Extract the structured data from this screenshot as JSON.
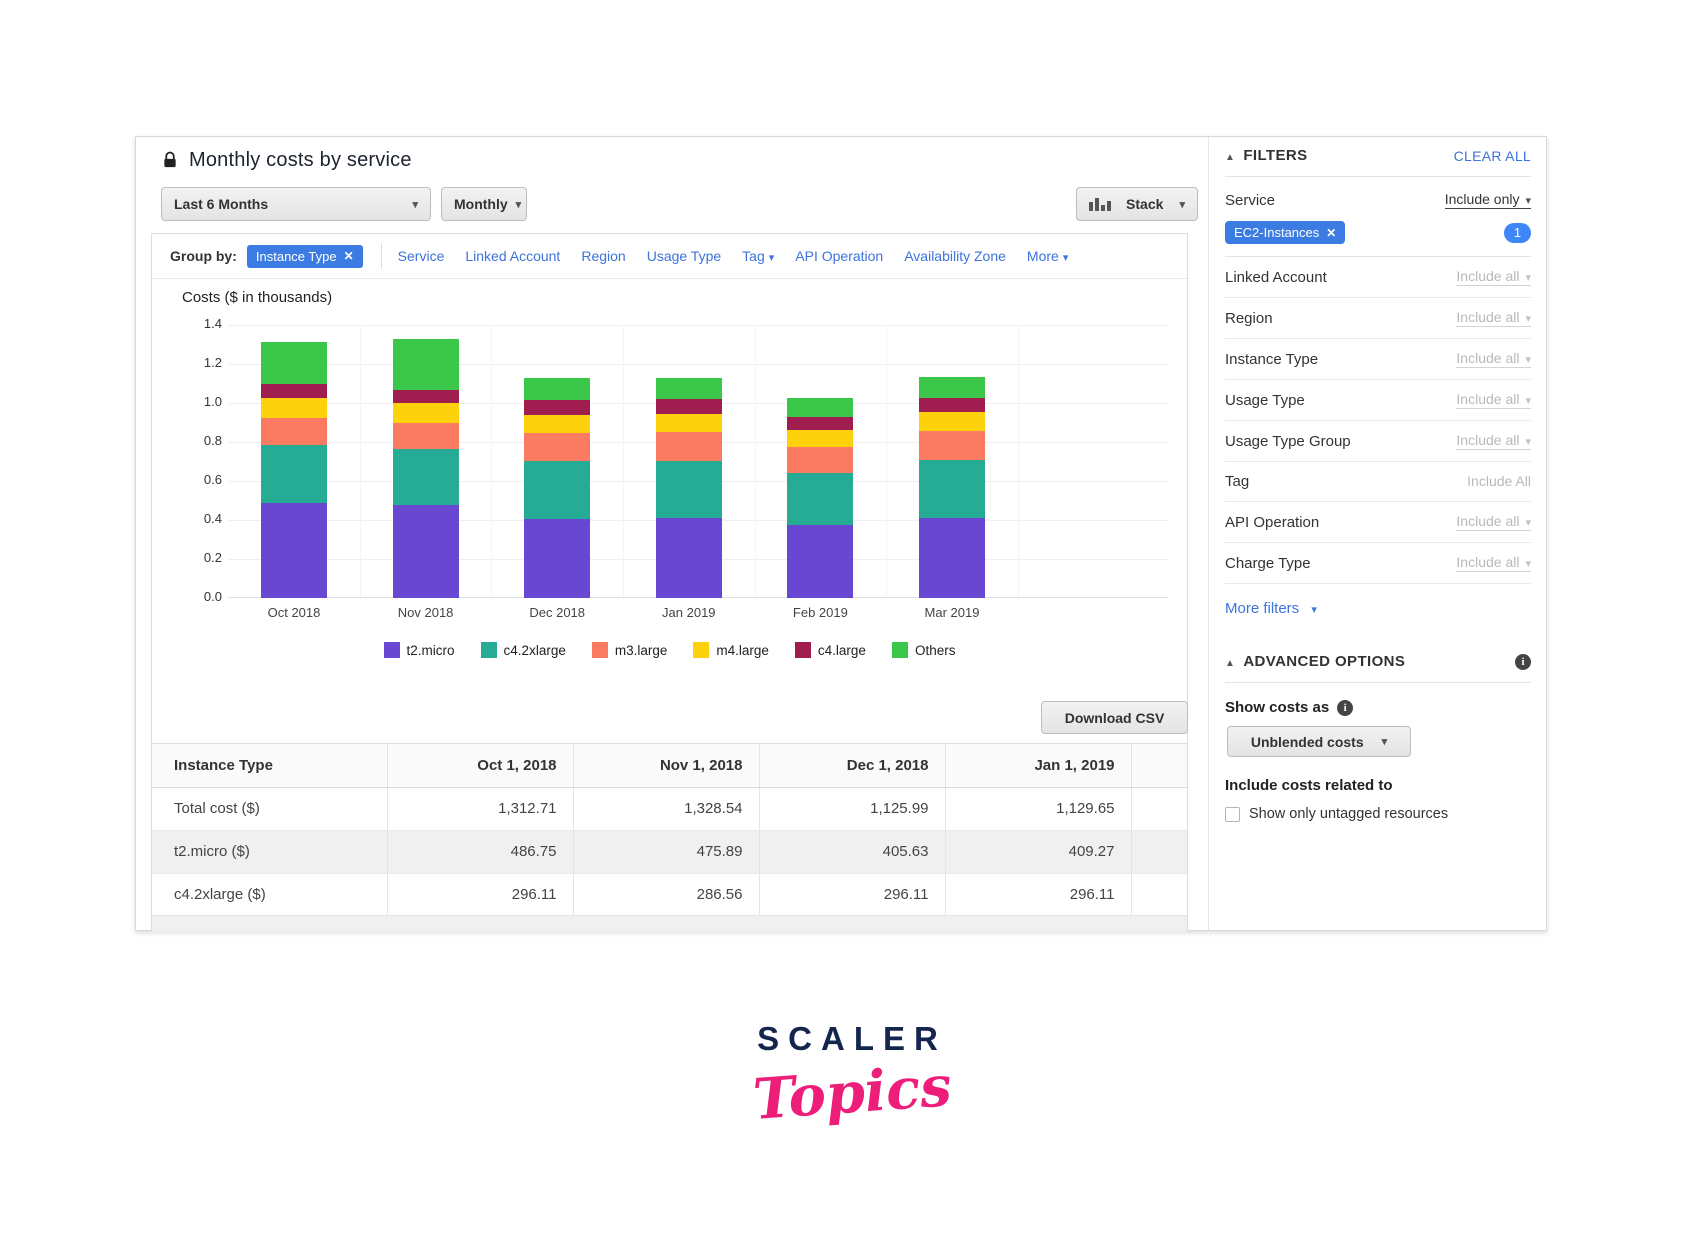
{
  "header": {
    "title": "Monthly costs by service"
  },
  "controls": {
    "date_range": "Last 6 Months",
    "granularity": "Monthly",
    "chart_style": "Stack"
  },
  "group_by": {
    "label": "Group by:",
    "chip": "Instance Type",
    "options": [
      {
        "label": "Service",
        "caret": false
      },
      {
        "label": "Linked Account",
        "caret": false
      },
      {
        "label": "Region",
        "caret": false
      },
      {
        "label": "Usage Type",
        "caret": false
      },
      {
        "label": "Tag",
        "caret": true
      },
      {
        "label": "API Operation",
        "caret": false
      },
      {
        "label": "Availability Zone",
        "caret": false
      },
      {
        "label": "More",
        "caret": true
      }
    ]
  },
  "chart_data": {
    "type": "bar",
    "stacked": true,
    "title": "Costs ($ in thousands)",
    "categories": [
      "Oct 2018",
      "Nov 2018",
      "Dec 2018",
      "Jan 2019",
      "Feb 2019",
      "Mar 2019"
    ],
    "series": [
      {
        "name": "t2.micro",
        "color": "#6847d1",
        "values": [
          0.487,
          0.476,
          0.406,
          0.409,
          0.375,
          0.41
        ]
      },
      {
        "name": "c4.2xlarge",
        "color": "#26ac95",
        "values": [
          0.296,
          0.287,
          0.296,
          0.296,
          0.265,
          0.3
        ]
      },
      {
        "name": "m3.large",
        "color": "#fa7b62",
        "values": [
          0.142,
          0.137,
          0.143,
          0.145,
          0.135,
          0.145
        ]
      },
      {
        "name": "m4.large",
        "color": "#fdd10c",
        "values": [
          0.1,
          0.1,
          0.095,
          0.095,
          0.087,
          0.1
        ]
      },
      {
        "name": "c4.large",
        "color": "#a01d50",
        "values": [
          0.073,
          0.065,
          0.075,
          0.075,
          0.068,
          0.07
        ]
      },
      {
        "name": "Others",
        "color": "#3bc84a",
        "values": [
          0.215,
          0.264,
          0.111,
          0.11,
          0.095,
          0.11
        ]
      }
    ],
    "ylim": [
      0,
      1.4
    ],
    "yticks": [
      0.0,
      0.2,
      0.4,
      0.6,
      0.8,
      1.0,
      1.2,
      1.4
    ],
    "grid": true,
    "legend_position": "bottom"
  },
  "actions": {
    "download_csv": "Download CSV"
  },
  "table": {
    "columns": [
      "Instance Type",
      "Oct 1, 2018",
      "Nov 1, 2018",
      "Dec 1, 2018",
      "Jan 1, 2019"
    ],
    "rows": [
      [
        "Total cost ($)",
        "1,312.71",
        "1,328.54",
        "1,125.99",
        "1,129.65"
      ],
      [
        "t2.micro ($)",
        "486.75",
        "475.89",
        "405.63",
        "409.27"
      ],
      [
        "c4.2xlarge ($)",
        "296.11",
        "286.56",
        "296.11",
        "296.11"
      ]
    ]
  },
  "filters": {
    "heading": "FILTERS",
    "clear_all": "CLEAR ALL",
    "service": {
      "label": "Service",
      "value": "Include only",
      "chip": "EC2-Instances",
      "count": "1"
    },
    "rows": [
      {
        "label": "Linked Account",
        "value": "Include all",
        "caret": true,
        "underline": true
      },
      {
        "label": "Region",
        "value": "Include all",
        "caret": true,
        "underline": true
      },
      {
        "label": "Instance Type",
        "value": "Include all",
        "caret": true,
        "underline": true
      },
      {
        "label": "Usage Type",
        "value": "Include all",
        "caret": true,
        "underline": true
      },
      {
        "label": "Usage Type Group",
        "value": "Include all",
        "caret": true,
        "underline": true
      },
      {
        "label": "Tag",
        "value": "Include All",
        "caret": false,
        "underline": false
      },
      {
        "label": "API Operation",
        "value": "Include all",
        "caret": true,
        "underline": true
      },
      {
        "label": "Charge Type",
        "value": "Include all",
        "caret": true,
        "underline": true
      }
    ],
    "more_filters": "More filters"
  },
  "advanced": {
    "heading": "ADVANCED OPTIONS",
    "show_costs_as": "Show costs as",
    "costs_dropdown": "Unblended costs",
    "include_costs": "Include costs related to",
    "checkbox_label": "Show only untagged resources"
  },
  "logo": {
    "line1": "SCALER",
    "line2": "Topics"
  },
  "colors": {
    "accent_blue": "#3d73da",
    "chip_blue": "#3c7ce2",
    "badge_blue": "#3f87f7",
    "logo_navy": "#14264e",
    "logo_pink": "#ed1e79"
  }
}
